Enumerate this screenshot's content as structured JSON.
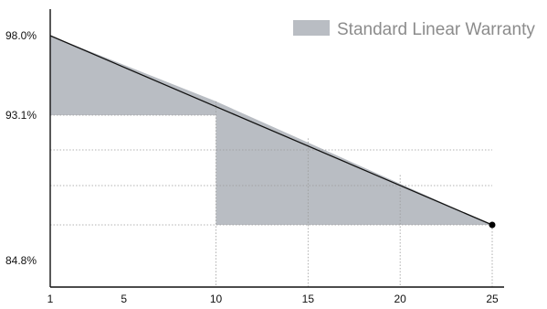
{
  "chart_data": {
    "type": "area",
    "title": "",
    "xlabel": "",
    "ylabel": "",
    "x_ticks": [
      "1",
      "5",
      "10",
      "15",
      "20",
      "25"
    ],
    "y_ticks": [
      "98.0%",
      "93.1%",
      "84.8%"
    ],
    "xlim": [
      1,
      25
    ],
    "ylim": [
      84.8,
      98.0
    ],
    "grid": true,
    "legend": {
      "position": "top-right",
      "entries": [
        {
          "label": "Standard Linear Warranty",
          "color": "#b9bdc3"
        }
      ]
    },
    "series": [
      {
        "name": "Standard Linear Warranty",
        "color": "#111111",
        "x": [
          1,
          25
        ],
        "y": [
          98.0,
          87.2
        ],
        "end_marker": true
      }
    ],
    "step_band": {
      "color": "#b9bdc3",
      "steps": [
        {
          "x_start": 1,
          "x_end": 10,
          "y": 93.1
        },
        {
          "x_start": 10,
          "x_end": 25,
          "y": 87.2
        }
      ]
    },
    "hlines": [
      93.1,
      91.0,
      88.8,
      87.2
    ],
    "vlines": [
      10,
      15,
      20,
      25
    ]
  }
}
